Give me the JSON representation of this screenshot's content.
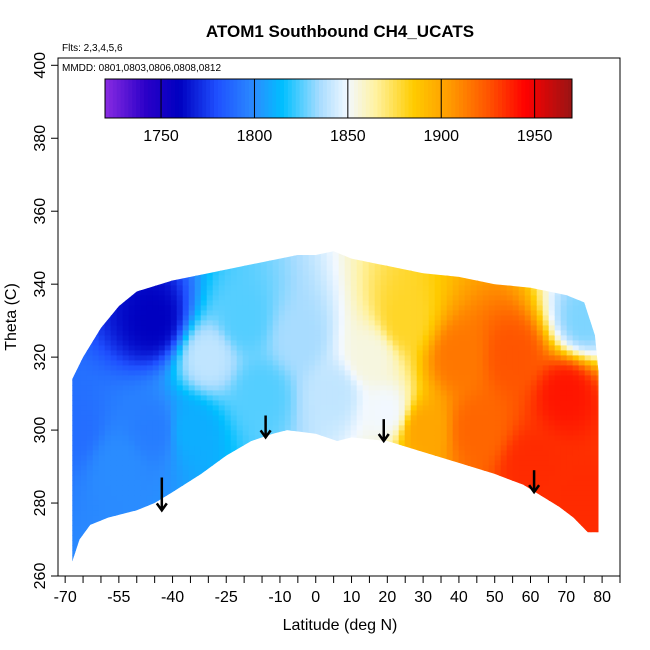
{
  "chart_data": {
    "type": "heatmap",
    "title": "ATOM1 Southbound CH4_UCATS",
    "annotations": [
      "Flts: 2,3,4,5,6",
      "MMDD: 0801,0803,0806,0808,0812"
    ],
    "xlabel": "Latitude (deg N)",
    "ylabel": "Theta (C)",
    "xlim": [
      -72,
      85
    ],
    "ylim": [
      260,
      402
    ],
    "x_ticks": [
      -70,
      -55,
      -40,
      -25,
      -10,
      0,
      10,
      20,
      30,
      40,
      50,
      60,
      70,
      80
    ],
    "x_tick_labels": [
      "-70",
      "-55",
      "-40",
      "-25",
      "-10",
      "0",
      "10",
      "20",
      "30",
      "40",
      "50",
      "60",
      "70",
      "80"
    ],
    "x_minor_ticks": [
      -65,
      -60,
      -50,
      -45,
      -35,
      -30,
      -20,
      -15,
      -5,
      5,
      15,
      25,
      35,
      45,
      55,
      65,
      75,
      85
    ],
    "y_ticks": [
      260,
      280,
      300,
      320,
      340,
      360,
      380,
      400
    ],
    "y_tick_labels": [
      "260",
      "280",
      "300",
      "320",
      "340",
      "360",
      "380",
      "400"
    ],
    "colorbar": {
      "range": [
        1720,
        1970
      ],
      "ticks": [
        1750,
        1800,
        1850,
        1900,
        1950
      ],
      "tick_labels": [
        "1750",
        "1800",
        "1850",
        "1900",
        "1950"
      ],
      "colors": [
        {
          "v": 1720,
          "c": "#8a2be2"
        },
        {
          "v": 1742,
          "c": "#2a00c8"
        },
        {
          "v": 1760,
          "c": "#0000c0"
        },
        {
          "v": 1780,
          "c": "#1f50ff"
        },
        {
          "v": 1800,
          "c": "#2a8cff"
        },
        {
          "v": 1815,
          "c": "#00bfff"
        },
        {
          "v": 1835,
          "c": "#a8dcff"
        },
        {
          "v": 1850,
          "c": "#f2f8ff"
        },
        {
          "v": 1865,
          "c": "#fff2a0"
        },
        {
          "v": 1885,
          "c": "#ffcc00"
        },
        {
          "v": 1905,
          "c": "#ff9900"
        },
        {
          "v": 1925,
          "c": "#ff5500"
        },
        {
          "v": 1945,
          "c": "#ff0000"
        },
        {
          "v": 1970,
          "c": "#991414"
        }
      ]
    },
    "upper_boundary": [
      [
        -68,
        314
      ],
      [
        -65,
        320
      ],
      [
        -60,
        328
      ],
      [
        -55,
        334
      ],
      [
        -50,
        338
      ],
      [
        -40,
        341
      ],
      [
        -30,
        343
      ],
      [
        -20,
        345
      ],
      [
        -10,
        347
      ],
      [
        -5,
        348
      ],
      [
        0,
        348
      ],
      [
        5,
        349
      ],
      [
        10,
        347
      ],
      [
        20,
        345
      ],
      [
        30,
        343
      ],
      [
        40,
        342
      ],
      [
        50,
        340
      ],
      [
        60,
        339
      ],
      [
        70,
        337
      ],
      [
        75,
        335
      ],
      [
        78,
        326
      ],
      [
        79,
        316
      ],
      [
        79,
        305
      ]
    ],
    "lower_boundary": [
      [
        -68,
        264
      ],
      [
        -66,
        270
      ],
      [
        -63,
        274
      ],
      [
        -58,
        276
      ],
      [
        -50,
        278
      ],
      [
        -45,
        280
      ],
      [
        -40,
        283
      ],
      [
        -32,
        288
      ],
      [
        -25,
        293
      ],
      [
        -18,
        297
      ],
      [
        -12,
        299
      ],
      [
        -8,
        300
      ],
      [
        0,
        299
      ],
      [
        6,
        297
      ],
      [
        10,
        298
      ],
      [
        20,
        297
      ],
      [
        30,
        294
      ],
      [
        40,
        291
      ],
      [
        50,
        288
      ],
      [
        58,
        285
      ],
      [
        63,
        282
      ],
      [
        68,
        279
      ],
      [
        72,
        276
      ],
      [
        76,
        272
      ],
      [
        79,
        272
      ]
    ],
    "field_anchors": [
      {
        "lat": -68,
        "theta": 300,
        "ch4": 1790
      },
      {
        "lat": -55,
        "theta": 290,
        "ch4": 1800
      },
      {
        "lat": -45,
        "theta": 330,
        "ch4": 1760
      },
      {
        "lat": -45,
        "theta": 300,
        "ch4": 1795
      },
      {
        "lat": -35,
        "theta": 300,
        "ch4": 1810
      },
      {
        "lat": -30,
        "theta": 320,
        "ch4": 1840
      },
      {
        "lat": -20,
        "theta": 330,
        "ch4": 1825
      },
      {
        "lat": -15,
        "theta": 310,
        "ch4": 1825
      },
      {
        "lat": -5,
        "theta": 325,
        "ch4": 1835
      },
      {
        "lat": 5,
        "theta": 310,
        "ch4": 1840
      },
      {
        "lat": 15,
        "theta": 320,
        "ch4": 1855
      },
      {
        "lat": 20,
        "theta": 305,
        "ch4": 1850
      },
      {
        "lat": 25,
        "theta": 330,
        "ch4": 1880
      },
      {
        "lat": 30,
        "theta": 300,
        "ch4": 1900
      },
      {
        "lat": 40,
        "theta": 320,
        "ch4": 1915
      },
      {
        "lat": 45,
        "theta": 300,
        "ch4": 1920
      },
      {
        "lat": 55,
        "theta": 320,
        "ch4": 1925
      },
      {
        "lat": 60,
        "theta": 290,
        "ch4": 1935
      },
      {
        "lat": 70,
        "theta": 310,
        "ch4": 1940
      },
      {
        "lat": 75,
        "theta": 280,
        "ch4": 1935
      },
      {
        "lat": 75,
        "theta": 330,
        "ch4": 1830
      }
    ],
    "arrows": [
      {
        "lat": -43,
        "theta_top": 287,
        "theta_tip": 278
      },
      {
        "lat": -14,
        "theta_top": 304,
        "theta_tip": 298
      },
      {
        "lat": 19,
        "theta_top": 303,
        "theta_tip": 297
      },
      {
        "lat": 61,
        "theta_top": 289,
        "theta_tip": 283
      }
    ]
  }
}
